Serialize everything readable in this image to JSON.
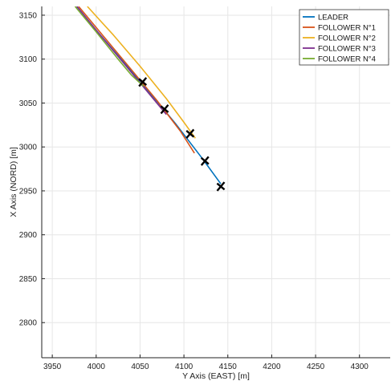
{
  "chart_data": {
    "type": "line",
    "xlabel": "Y Axis (EAST) [m]",
    "ylabel": "X Axis (NORD) [m]",
    "xlim": [
      3938,
      4335
    ],
    "ylim": [
      2760,
      3160
    ],
    "xticks": [
      3950,
      4000,
      4050,
      4100,
      4150,
      4200,
      4250,
      4300
    ],
    "yticks": [
      2800,
      2850,
      2900,
      2950,
      3000,
      3050,
      3100,
      3150
    ],
    "grid": true,
    "legend_position": "top-right",
    "series": [
      {
        "name": "LEADER",
        "color": "#0072BD",
        "x": [
          3978,
          4000,
          4030,
          4060,
          4090,
          4120,
          4142
        ],
        "y": [
          3160,
          3133,
          3098,
          3063,
          3027,
          2988,
          2958
        ]
      },
      {
        "name": "FOLLOWER N°1",
        "color": "#D95319",
        "x": [
          3980,
          4010,
          4040,
          4070,
          4096,
          4112
        ],
        "y": [
          3160,
          3124,
          3088,
          3052,
          3018,
          2993
        ]
      },
      {
        "name": "FOLLOWER N°2",
        "color": "#EDB120",
        "x": [
          3990,
          4020,
          4050,
          4080,
          4100,
          4113
        ],
        "y": [
          3160,
          3127,
          3092,
          3055,
          3028,
          3010
        ]
      },
      {
        "name": "FOLLOWER N°3",
        "color": "#7E2F8E",
        "x": [
          3978,
          4000,
          4025,
          4050,
          4065,
          4080
        ],
        "y": [
          3160,
          3133,
          3103,
          3073,
          3055,
          3037
        ]
      },
      {
        "name": "FOLLOWER N°4",
        "color": "#77AC30",
        "x": [
          3976,
          4000,
          4025,
          4040,
          4054
        ],
        "y": [
          3160,
          3131,
          3100,
          3082,
          3069
        ]
      }
    ],
    "markers": [
      {
        "series": "LEADER",
        "x": 4142,
        "y": 2955
      },
      {
        "series": "FOLLOWER N°1",
        "x": 4124,
        "y": 2984
      },
      {
        "series": "FOLLOWER N°2",
        "x": 4107,
        "y": 3015
      },
      {
        "series": "FOLLOWER N°3",
        "x": 4078,
        "y": 3043
      },
      {
        "series": "FOLLOWER N°4",
        "x": 4053,
        "y": 3074
      }
    ]
  }
}
